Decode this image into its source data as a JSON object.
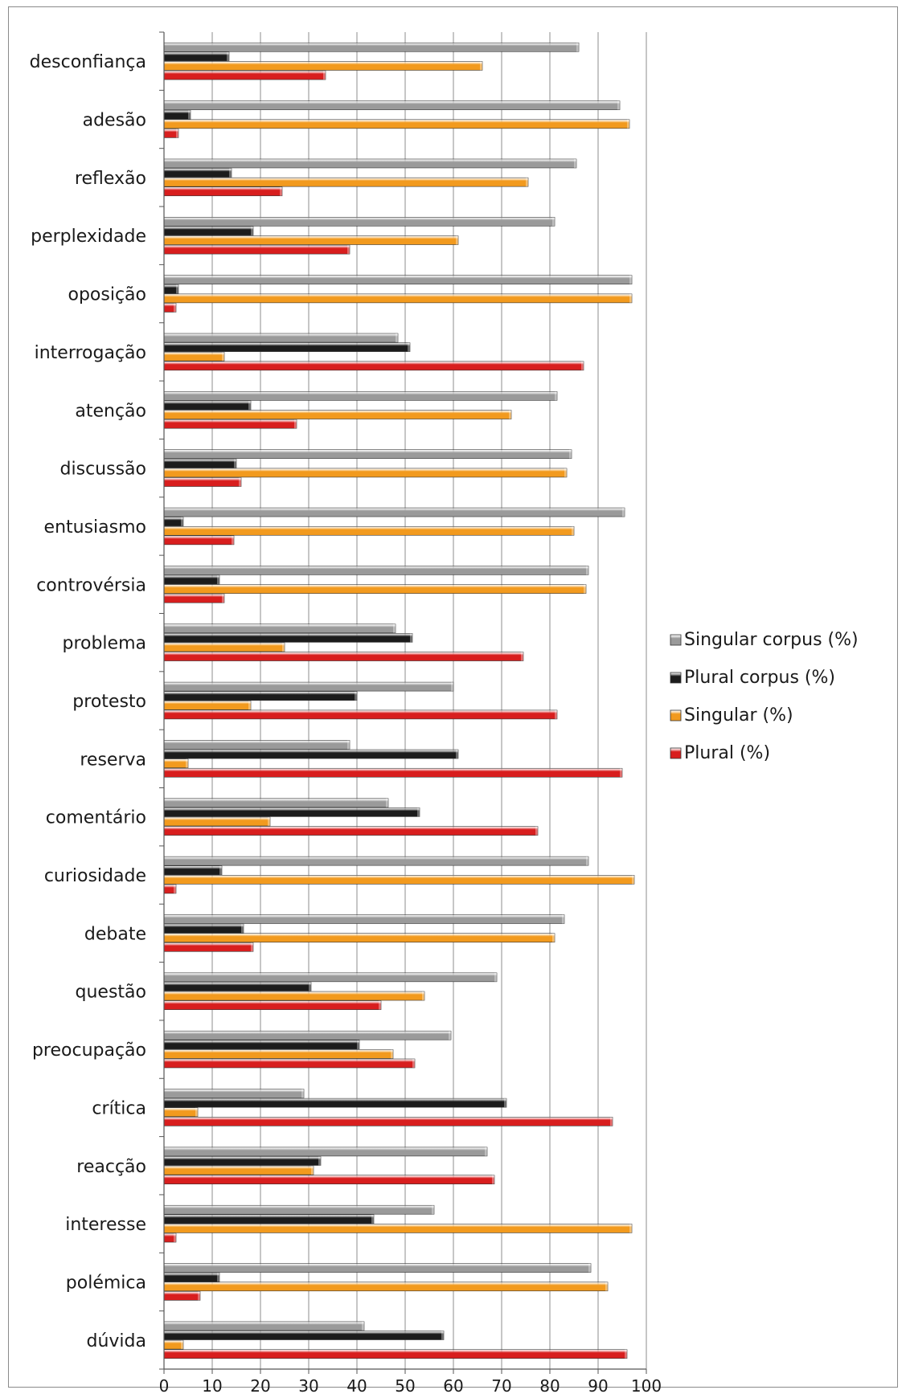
{
  "chart_data": {
    "type": "bar",
    "orientation": "horizontal",
    "categories": [
      "desconfiança",
      "adesão",
      "reflexão",
      "perplexidade",
      "oposição",
      "interrogação",
      "atenção",
      "discussão",
      "entusiasmo",
      "controvérsia",
      "problema",
      "protesto",
      "reserva",
      "comentário",
      "curiosidade",
      "debate",
      "questão",
      "preocupação",
      "crítica",
      "reacção",
      "interesse",
      "polémica",
      "dúvida"
    ],
    "series": [
      {
        "name": "Singular corpus (%)",
        "color": "#9a9a9a",
        "values": [
          86,
          94.5,
          85.5,
          81,
          97,
          48.5,
          81.5,
          84.5,
          95.5,
          88,
          48,
          60,
          38.5,
          46.5,
          88,
          83,
          69,
          59.5,
          29,
          67,
          56,
          88.5,
          41.5
        ]
      },
      {
        "name": "Plural corpus (%)",
        "color": "#1c1c1c",
        "values": [
          13.5,
          5.5,
          14,
          18.5,
          3,
          51,
          18,
          15,
          4,
          11.5,
          51.5,
          40,
          61,
          53,
          12,
          16.5,
          30.5,
          40.5,
          71,
          32.5,
          43.5,
          11.5,
          58
        ]
      },
      {
        "name": "Singular (%)",
        "color": "#f29a1e",
        "values": [
          66,
          96.5,
          75.5,
          61,
          97,
          12.5,
          72,
          83.5,
          85,
          87.5,
          25,
          18,
          5,
          22,
          97.5,
          81,
          54,
          47.5,
          7,
          31,
          97,
          92,
          4
        ]
      },
      {
        "name": "Plural (%)",
        "color": "#d81e1e",
        "values": [
          33.5,
          3,
          24.5,
          38.5,
          2.5,
          87,
          27.5,
          16,
          14.5,
          12.5,
          74.5,
          81.5,
          95,
          77.5,
          2.5,
          18.5,
          45,
          52,
          93,
          68.5,
          2.5,
          7.5,
          96
        ]
      }
    ],
    "xlim": [
      0,
      100
    ],
    "xticks": [
      "0",
      "10",
      "20",
      "30",
      "40",
      "50",
      "60",
      "70",
      "80",
      "90",
      "100"
    ],
    "title": "",
    "xlabel": "",
    "ylabel": "",
    "grid": "vertical",
    "legend_position": "right"
  }
}
